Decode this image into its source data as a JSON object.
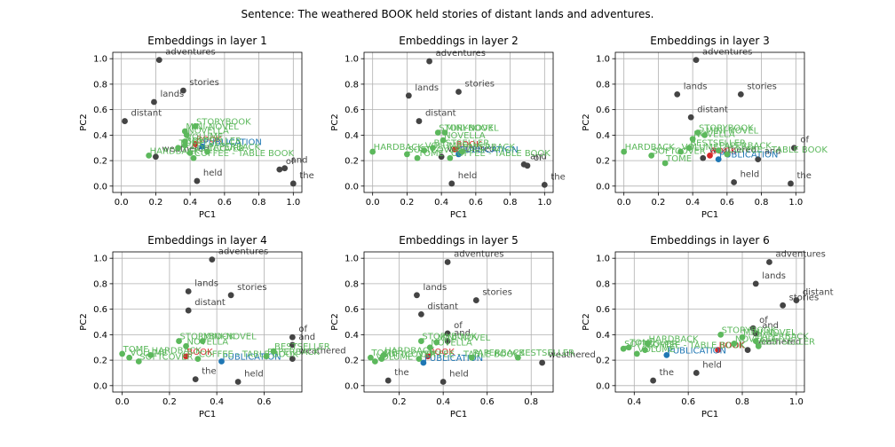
{
  "suptitle": "Sentence: The weathered BOOK held stories of distant lands and adventures.",
  "colors": {
    "sentence": "#444444",
    "related": "#5cb85c",
    "target": "#d62728",
    "publication": "#1f77b4"
  },
  "chart_data": [
    {
      "type": "scatter",
      "title": "Embeddings in layer 1",
      "xlabel": "PC1",
      "ylabel": "PC2",
      "xlim": [
        -0.05,
        1.05
      ],
      "ylim": [
        -0.05,
        1.05
      ],
      "xticks": [
        "0.0",
        "0.2",
        "0.4",
        "0.6",
        "0.8",
        "1.0"
      ],
      "yticks": [
        "0.0",
        "0.2",
        "0.4",
        "0.6",
        "0.8",
        "1.0"
      ],
      "grid": true,
      "points": [
        {
          "label": "adventures",
          "x": 0.22,
          "y": 0.99,
          "group": "sentence"
        },
        {
          "label": "stories",
          "x": 0.36,
          "y": 0.75,
          "group": "sentence"
        },
        {
          "label": "lands",
          "x": 0.19,
          "y": 0.66,
          "group": "sentence"
        },
        {
          "label": "distant",
          "x": 0.02,
          "y": 0.51,
          "group": "sentence"
        },
        {
          "label": "held",
          "x": 0.44,
          "y": 0.04,
          "group": "sentence"
        },
        {
          "label": "the",
          "x": 1.0,
          "y": 0.02,
          "group": "sentence"
        },
        {
          "label": "of",
          "x": 0.92,
          "y": 0.13,
          "group": "sentence"
        },
        {
          "label": "and",
          "x": 0.95,
          "y": 0.14,
          "group": "sentence"
        },
        {
          "label": "weathered",
          "x": 0.2,
          "y": 0.23,
          "group": "sentence"
        },
        {
          "label": "BOOK",
          "x": 0.43,
          "y": 0.33,
          "group": "target"
        },
        {
          "label": "PUBLICATION",
          "x": 0.47,
          "y": 0.31,
          "group": "publication"
        },
        {
          "label": "STORYBOOK",
          "x": 0.43,
          "y": 0.47,
          "group": "related"
        },
        {
          "label": "MINI-NOVEL",
          "x": 0.37,
          "y": 0.43,
          "group": "related"
        },
        {
          "label": "NOVELLA",
          "x": 0.38,
          "y": 0.4,
          "group": "related"
        },
        {
          "label": "HARDBACK",
          "x": 0.16,
          "y": 0.24,
          "group": "related"
        },
        {
          "label": "COFFEE - TABLE BOOK",
          "x": 0.42,
          "y": 0.22,
          "group": "related"
        },
        {
          "label": "PAPERBACK",
          "x": 0.5,
          "y": 0.27,
          "group": "related"
        },
        {
          "label": "BESTSELLER",
          "x": 0.37,
          "y": 0.32,
          "group": "related"
        },
        {
          "label": "SOFTCOVER",
          "x": 0.4,
          "y": 0.26,
          "group": "related"
        },
        {
          "label": "TOME",
          "x": 0.33,
          "y": 0.3,
          "group": "related"
        },
        {
          "label": "VOLUME",
          "x": 0.37,
          "y": 0.35,
          "group": "related"
        }
      ]
    },
    {
      "type": "scatter",
      "title": "Embeddings in layer 2",
      "xlabel": "PC1",
      "ylabel": "PC2",
      "xlim": [
        -0.05,
        1.05
      ],
      "ylim": [
        -0.05,
        1.05
      ],
      "xticks": [
        "0.0",
        "0.2",
        "0.4",
        "0.6",
        "0.8",
        "1.0"
      ],
      "yticks": [
        "0.0",
        "0.2",
        "0.4",
        "0.6",
        "0.8",
        "1.0"
      ],
      "grid": true,
      "points": [
        {
          "label": "adventures",
          "x": 0.33,
          "y": 0.98,
          "group": "sentence"
        },
        {
          "label": "stories",
          "x": 0.5,
          "y": 0.74,
          "group": "sentence"
        },
        {
          "label": "lands",
          "x": 0.21,
          "y": 0.71,
          "group": "sentence"
        },
        {
          "label": "distant",
          "x": 0.27,
          "y": 0.51,
          "group": "sentence"
        },
        {
          "label": "held",
          "x": 0.46,
          "y": 0.02,
          "group": "sentence"
        },
        {
          "label": "the",
          "x": 1.0,
          "y": 0.01,
          "group": "sentence"
        },
        {
          "label": "and",
          "x": 0.88,
          "y": 0.17,
          "group": "sentence"
        },
        {
          "label": "of",
          "x": 0.9,
          "y": 0.16,
          "group": "sentence"
        },
        {
          "label": "weathered",
          "x": 0.4,
          "y": 0.23,
          "group": "sentence"
        },
        {
          "label": "BOOK",
          "x": 0.48,
          "y": 0.29,
          "group": "target"
        },
        {
          "label": "PUBLICATION",
          "x": 0.5,
          "y": 0.25,
          "group": "publication"
        },
        {
          "label": "STORYBOOK",
          "x": 0.38,
          "y": 0.42,
          "group": "related"
        },
        {
          "label": "MINI-NOVEL",
          "x": 0.42,
          "y": 0.42,
          "group": "related"
        },
        {
          "label": "NOVELLA",
          "x": 0.41,
          "y": 0.36,
          "group": "related"
        },
        {
          "label": "HARDBACK",
          "x": 0.0,
          "y": 0.27,
          "group": "related"
        },
        {
          "label": "COFFEE - TABLE BOOK",
          "x": 0.45,
          "y": 0.22,
          "group": "related"
        },
        {
          "label": "PAPERBACK",
          "x": 0.52,
          "y": 0.27,
          "group": "related"
        },
        {
          "label": "BESTSELLER",
          "x": 0.35,
          "y": 0.3,
          "group": "related"
        },
        {
          "label": "SOFTCOVER",
          "x": 0.2,
          "y": 0.25,
          "group": "related"
        },
        {
          "label": "TOME",
          "x": 0.26,
          "y": 0.22,
          "group": "related"
        },
        {
          "label": "VOLUME",
          "x": 0.3,
          "y": 0.28,
          "group": "related"
        }
      ]
    },
    {
      "type": "scatter",
      "title": "Embeddings in layer 3",
      "xlabel": "PC1",
      "ylabel": "PC2",
      "xlim": [
        -0.05,
        1.05
      ],
      "ylim": [
        -0.05,
        1.05
      ],
      "xticks": [
        "0.0",
        "0.2",
        "0.4",
        "0.6",
        "0.8",
        "1.0"
      ],
      "yticks": [
        "0.0",
        "0.2",
        "0.4",
        "0.6",
        "0.8",
        "1.0"
      ],
      "grid": true,
      "points": [
        {
          "label": "adventures",
          "x": 0.42,
          "y": 0.99,
          "group": "sentence"
        },
        {
          "label": "stories",
          "x": 0.68,
          "y": 0.72,
          "group": "sentence"
        },
        {
          "label": "lands",
          "x": 0.31,
          "y": 0.72,
          "group": "sentence"
        },
        {
          "label": "distant",
          "x": 0.39,
          "y": 0.54,
          "group": "sentence"
        },
        {
          "label": "held",
          "x": 0.64,
          "y": 0.03,
          "group": "sentence"
        },
        {
          "label": "the",
          "x": 0.97,
          "y": 0.02,
          "group": "sentence"
        },
        {
          "label": "of",
          "x": 0.99,
          "y": 0.3,
          "group": "sentence"
        },
        {
          "label": "and",
          "x": 0.78,
          "y": 0.21,
          "group": "sentence"
        },
        {
          "label": "weathered",
          "x": 0.46,
          "y": 0.22,
          "group": "sentence"
        },
        {
          "label": "BOOK",
          "x": 0.5,
          "y": 0.24,
          "group": "target"
        },
        {
          "label": "PUBLICATION",
          "x": 0.55,
          "y": 0.21,
          "group": "publication"
        },
        {
          "label": "STORYBOOK",
          "x": 0.43,
          "y": 0.42,
          "group": "related"
        },
        {
          "label": "MINI-NOVEL",
          "x": 0.47,
          "y": 0.4,
          "group": "related"
        },
        {
          "label": "NOVELLA",
          "x": 0.4,
          "y": 0.37,
          "group": "related"
        },
        {
          "label": "HARDBACK",
          "x": 0.0,
          "y": 0.27,
          "group": "related"
        },
        {
          "label": "COFFEE - TABLE BOOK",
          "x": 0.6,
          "y": 0.25,
          "group": "related"
        },
        {
          "label": "PAPERBACK",
          "x": 0.55,
          "y": 0.28,
          "group": "related"
        },
        {
          "label": "BESTSELLER",
          "x": 0.38,
          "y": 0.3,
          "group": "related"
        },
        {
          "label": "SOFTCOVER",
          "x": 0.16,
          "y": 0.24,
          "group": "related"
        },
        {
          "label": "TOME",
          "x": 0.24,
          "y": 0.18,
          "group": "related"
        },
        {
          "label": "VOLUME",
          "x": 0.33,
          "y": 0.27,
          "group": "related"
        }
      ]
    },
    {
      "type": "scatter",
      "title": "Embeddings in layer 4",
      "xlabel": "PC1",
      "ylabel": "PC2",
      "xlim": [
        -0.04,
        0.76
      ],
      "ylim": [
        -0.05,
        1.05
      ],
      "xticks": [
        "0.0",
        "0.2",
        "0.4",
        "0.6"
      ],
      "yticks": [
        "0.0",
        "0.2",
        "0.4",
        "0.6",
        "0.8",
        "1.0"
      ],
      "grid": true,
      "points": [
        {
          "label": "adventures",
          "x": 0.38,
          "y": 0.99,
          "group": "sentence"
        },
        {
          "label": "stories",
          "x": 0.46,
          "y": 0.71,
          "group": "sentence"
        },
        {
          "label": "lands",
          "x": 0.28,
          "y": 0.74,
          "group": "sentence"
        },
        {
          "label": "distant",
          "x": 0.28,
          "y": 0.59,
          "group": "sentence"
        },
        {
          "label": "held",
          "x": 0.49,
          "y": 0.03,
          "group": "sentence"
        },
        {
          "label": "the",
          "x": 0.31,
          "y": 0.05,
          "group": "sentence"
        },
        {
          "label": "of",
          "x": 0.72,
          "y": 0.38,
          "group": "sentence"
        },
        {
          "label": "and",
          "x": 0.72,
          "y": 0.32,
          "group": "sentence"
        },
        {
          "label": "weathered",
          "x": 0.72,
          "y": 0.21,
          "group": "sentence"
        },
        {
          "label": "BOOK",
          "x": 0.27,
          "y": 0.23,
          "group": "target"
        },
        {
          "label": "PUBLICATION",
          "x": 0.42,
          "y": 0.19,
          "group": "publication"
        },
        {
          "label": "STORYBOOK",
          "x": 0.24,
          "y": 0.35,
          "group": "related"
        },
        {
          "label": "MINI-NOVEL",
          "x": 0.34,
          "y": 0.35,
          "group": "related"
        },
        {
          "label": "NOVELLA",
          "x": 0.27,
          "y": 0.31,
          "group": "related"
        },
        {
          "label": "HARDBACK",
          "x": 0.12,
          "y": 0.24,
          "group": "related"
        },
        {
          "label": "COFFEE - TABLE BOOK",
          "x": 0.32,
          "y": 0.21,
          "group": "related"
        },
        {
          "label": "PAPERBACK",
          "x": 0.61,
          "y": 0.23,
          "group": "related"
        },
        {
          "label": "BESTSELLER",
          "x": 0.64,
          "y": 0.27,
          "group": "related"
        },
        {
          "label": "SOFTCOVER",
          "x": 0.07,
          "y": 0.19,
          "group": "related"
        },
        {
          "label": "TOME",
          "x": 0.0,
          "y": 0.25,
          "group": "related"
        },
        {
          "label": "VOLUME",
          "x": 0.03,
          "y": 0.22,
          "group": "related"
        }
      ]
    },
    {
      "type": "scatter",
      "title": "Embeddings in layer 5",
      "xlabel": "PC1",
      "ylabel": "PC2",
      "xlim": [
        0.04,
        0.9
      ],
      "ylim": [
        -0.05,
        1.05
      ],
      "xticks": [
        "0.2",
        "0.4",
        "0.6",
        "0.8"
      ],
      "yticks": [
        "0.0",
        "0.2",
        "0.4",
        "0.6",
        "0.8",
        "1.0"
      ],
      "grid": true,
      "points": [
        {
          "label": "adventures",
          "x": 0.42,
          "y": 0.97,
          "group": "sentence"
        },
        {
          "label": "stories",
          "x": 0.55,
          "y": 0.67,
          "group": "sentence"
        },
        {
          "label": "lands",
          "x": 0.28,
          "y": 0.71,
          "group": "sentence"
        },
        {
          "label": "distant",
          "x": 0.3,
          "y": 0.56,
          "group": "sentence"
        },
        {
          "label": "held",
          "x": 0.4,
          "y": 0.03,
          "group": "sentence"
        },
        {
          "label": "the",
          "x": 0.15,
          "y": 0.04,
          "group": "sentence"
        },
        {
          "label": "of",
          "x": 0.42,
          "y": 0.41,
          "group": "sentence"
        },
        {
          "label": "and",
          "x": 0.42,
          "y": 0.35,
          "group": "sentence"
        },
        {
          "label": "weathered",
          "x": 0.85,
          "y": 0.18,
          "group": "sentence"
        },
        {
          "label": "BOOK",
          "x": 0.33,
          "y": 0.23,
          "group": "target"
        },
        {
          "label": "PUBLICATION",
          "x": 0.31,
          "y": 0.18,
          "group": "publication"
        },
        {
          "label": "STORYBOOK",
          "x": 0.3,
          "y": 0.35,
          "group": "related"
        },
        {
          "label": "MINI-NOVEL",
          "x": 0.37,
          "y": 0.34,
          "group": "related"
        },
        {
          "label": "NOVELLA",
          "x": 0.34,
          "y": 0.3,
          "group": "related"
        },
        {
          "label": "HARDBACK",
          "x": 0.13,
          "y": 0.24,
          "group": "related"
        },
        {
          "label": "COFFEE - TABLE BOOK",
          "x": 0.29,
          "y": 0.21,
          "group": "related"
        },
        {
          "label": "PAPERBACK",
          "x": 0.53,
          "y": 0.22,
          "group": "related"
        },
        {
          "label": "BESTSELLER",
          "x": 0.74,
          "y": 0.22,
          "group": "related"
        },
        {
          "label": "SOFTCOVER",
          "x": 0.12,
          "y": 0.21,
          "group": "related"
        },
        {
          "label": "TOME",
          "x": 0.07,
          "y": 0.22,
          "group": "related"
        },
        {
          "label": "VOLUME",
          "x": 0.09,
          "y": 0.19,
          "group": "related"
        }
      ]
    },
    {
      "type": "scatter",
      "title": "Embeddings in layer 6",
      "xlabel": "PC1",
      "ylabel": "PC2",
      "xlim": [
        0.33,
        1.03
      ],
      "ylim": [
        -0.05,
        1.05
      ],
      "xticks": [
        "0.4",
        "0.6",
        "0.8",
        "1.0"
      ],
      "yticks": [
        "0.0",
        "0.2",
        "0.4",
        "0.6",
        "0.8",
        "1.0"
      ],
      "grid": true,
      "points": [
        {
          "label": "adventures",
          "x": 0.9,
          "y": 0.97,
          "group": "sentence"
        },
        {
          "label": "lands",
          "x": 0.85,
          "y": 0.8,
          "group": "sentence"
        },
        {
          "label": "stories",
          "x": 0.95,
          "y": 0.63,
          "group": "sentence"
        },
        {
          "label": "distant",
          "x": 1.0,
          "y": 0.67,
          "group": "sentence"
        },
        {
          "label": "held",
          "x": 0.63,
          "y": 0.1,
          "group": "sentence"
        },
        {
          "label": "the",
          "x": 0.47,
          "y": 0.04,
          "group": "sentence"
        },
        {
          "label": "of",
          "x": 0.84,
          "y": 0.45,
          "group": "sentence"
        },
        {
          "label": "and",
          "x": 0.85,
          "y": 0.41,
          "group": "sentence"
        },
        {
          "label": "weathered",
          "x": 0.82,
          "y": 0.28,
          "group": "sentence"
        },
        {
          "label": "BOOK",
          "x": 0.71,
          "y": 0.28,
          "group": "target"
        },
        {
          "label": "PUBLICATION",
          "x": 0.52,
          "y": 0.24,
          "group": "publication"
        },
        {
          "label": "STORYBOOK",
          "x": 0.72,
          "y": 0.4,
          "group": "related"
        },
        {
          "label": "MINI-NOVEL",
          "x": 0.8,
          "y": 0.38,
          "group": "related"
        },
        {
          "label": "NOVELLA",
          "x": 0.77,
          "y": 0.33,
          "group": "related"
        },
        {
          "label": "HARDBACK",
          "x": 0.45,
          "y": 0.33,
          "group": "related"
        },
        {
          "label": "COFFEE - TABLE BOOK",
          "x": 0.44,
          "y": 0.28,
          "group": "related"
        },
        {
          "label": "PAPERBACK",
          "x": 0.85,
          "y": 0.35,
          "group": "related"
        },
        {
          "label": "BESTSELLER",
          "x": 0.86,
          "y": 0.31,
          "group": "related"
        },
        {
          "label": "SOFTCOVER",
          "x": 0.36,
          "y": 0.29,
          "group": "related"
        },
        {
          "label": "TOME",
          "x": 0.38,
          "y": 0.3,
          "group": "related"
        },
        {
          "label": "VOLUME",
          "x": 0.41,
          "y": 0.25,
          "group": "related"
        }
      ]
    }
  ]
}
